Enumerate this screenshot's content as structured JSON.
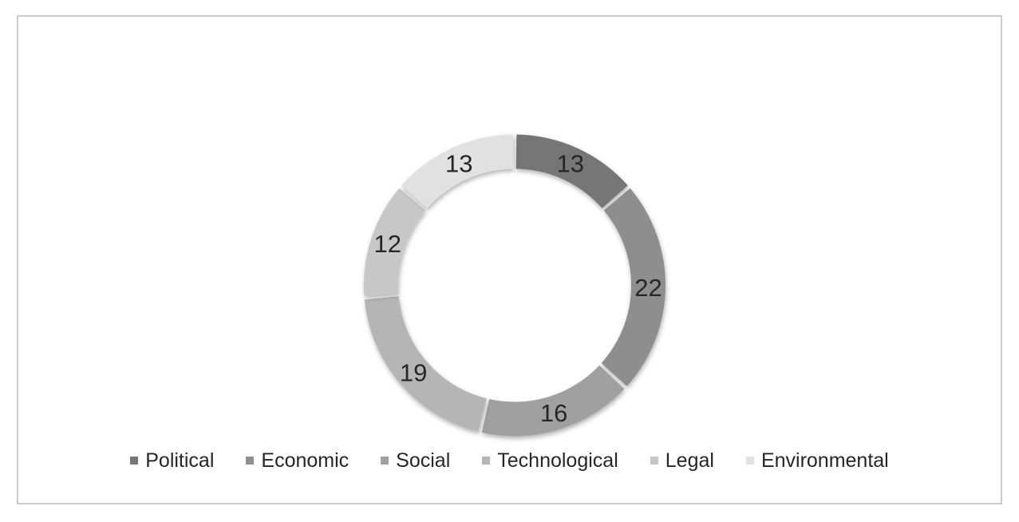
{
  "frame": {
    "border_color": "#CBCBCB",
    "background": "#FFFFFF"
  },
  "chart_data": {
    "type": "pie",
    "subtype": "donut",
    "categories": [
      "Political",
      "Economic",
      "Social",
      "Technological",
      "Legal",
      "Environmental"
    ],
    "values": [
      13,
      22,
      16,
      19,
      12,
      13
    ],
    "colors": [
      "#767676",
      "#8E8E8E",
      "#A0A0A0",
      "#B5B5B5",
      "#C7C7C7",
      "#E1E1E1"
    ],
    "data_labels_shown": true,
    "data_label_color": "#262626",
    "start_angle_deg": 0,
    "direction": "clockwise",
    "hole_radius_ratio": 0.77,
    "slice_gap_degrees": 1.4,
    "separator_color": "#FFFFFF",
    "legend_position": "bottom",
    "legend_text_color": "#262626"
  }
}
